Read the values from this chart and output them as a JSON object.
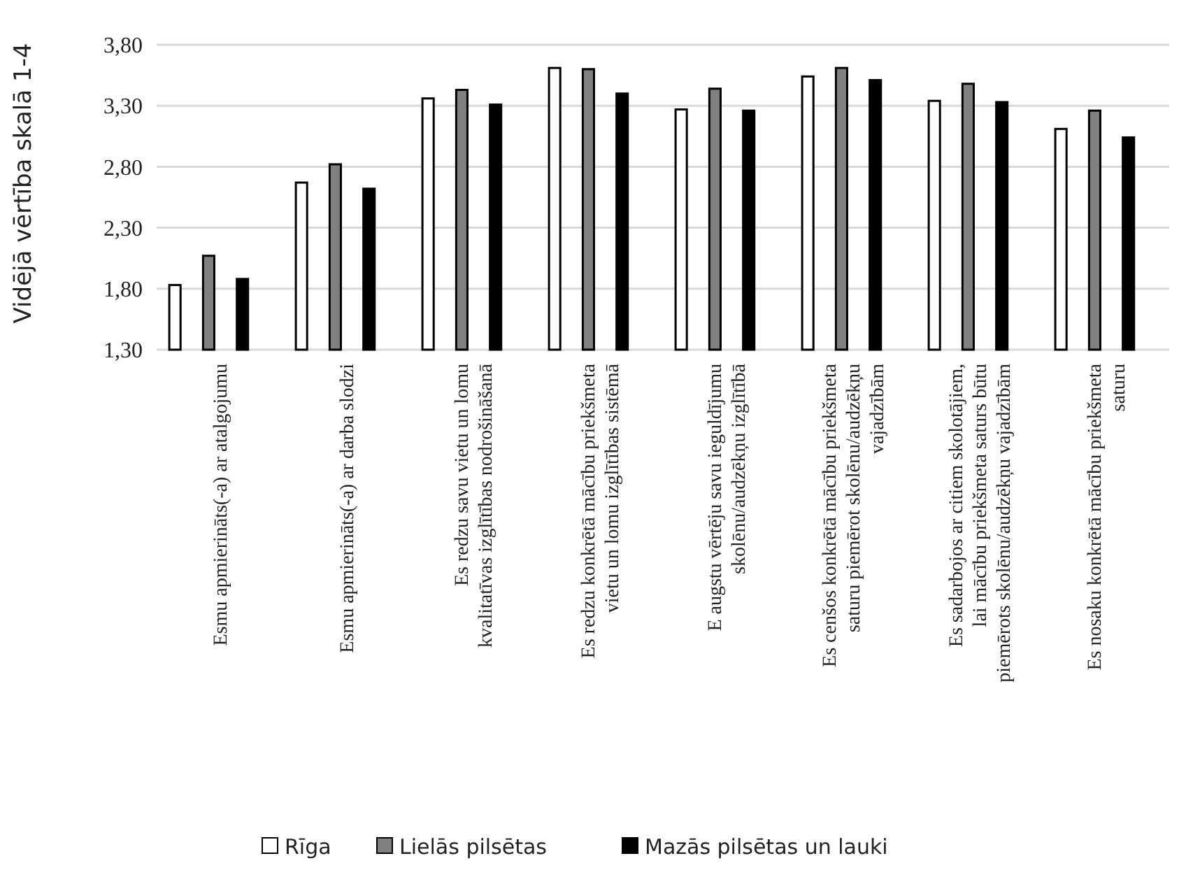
{
  "chart_data": {
    "type": "bar",
    "ylabel": "Vidējā vērtība skalā 1-4",
    "categories": [
      "Esmu apmierināts(-a) ar atalgojumu",
      "Esmu apmierināts(-a) ar darba slodzi",
      "Es redzu savu vietu un lomu kvalitatīvas izglītības nodrošināšanā",
      "Es redzu konkrētā mācību priekšmeta vietu un lomu izglītības sistēmā",
      "E augstu vērtēju savu ieguldījumu skolēnu/audzēkņu izglītībā",
      "Es cenšos konkrētā mācību priekšmeta saturu piemērot skolēnu/audzēkņu vajadzībām",
      "Es sadarbojos ar citiem skolotājiem, lai mācību priekšmeta saturs būtu piemērots skolēnu/audzēkņu vajadzībām",
      "Es nosaku konkrētā mācību priekšmeta saturu"
    ],
    "series": [
      {
        "name": "Rīga",
        "color": "#ffffff",
        "values": [
          1.83,
          2.67,
          3.36,
          3.61,
          3.27,
          3.54,
          3.34,
          3.11
        ]
      },
      {
        "name": "Lielās pilsētas",
        "color": "#808080",
        "values": [
          2.07,
          2.82,
          3.43,
          3.6,
          3.44,
          3.61,
          3.48,
          3.26
        ]
      },
      {
        "name": "Mazās pilsētas un lauki",
        "color": "#000000",
        "values": [
          1.88,
          2.62,
          3.31,
          3.4,
          3.26,
          3.51,
          3.33,
          3.04
        ]
      }
    ],
    "ylim": [
      1.3,
      3.8
    ],
    "yticks": [
      {
        "value": 1.3,
        "label": "1,30"
      },
      {
        "value": 1.8,
        "label": "1,80"
      },
      {
        "value": 2.3,
        "label": "2,30"
      },
      {
        "value": 2.8,
        "label": "2,80"
      },
      {
        "value": 3.3,
        "label": "3,30"
      },
      {
        "value": 3.8,
        "label": "3,80"
      }
    ],
    "grid": true,
    "legend": "bottom"
  }
}
